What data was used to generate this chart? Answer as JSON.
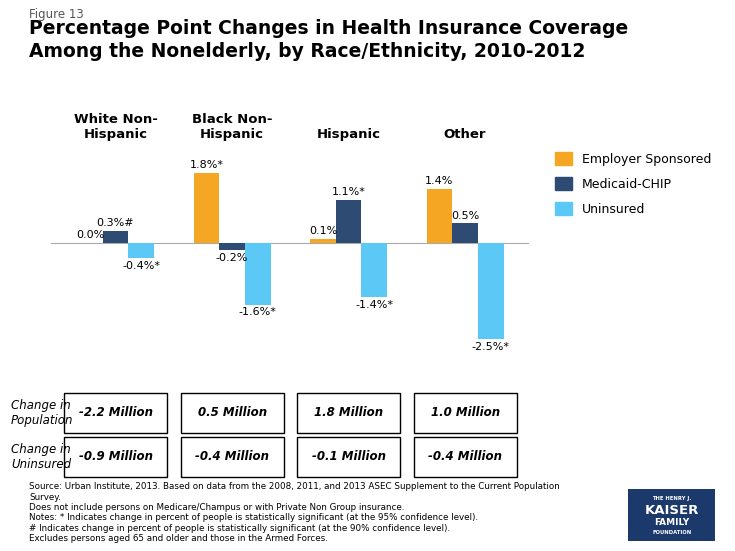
{
  "title_line1": "Percentage Point Changes in Health Insurance Coverage",
  "title_line2": "Among the Nonelderly, by Race/Ethnicity, 2010-2012",
  "figure_label": "Figure 13",
  "categories": [
    "White Non-\nHispanic",
    "Black Non-\nHispanic",
    "Hispanic",
    "Other"
  ],
  "employer_sponsored": [
    0.0,
    1.8,
    0.1,
    1.4
  ],
  "medicaid_chip": [
    0.3,
    -0.2,
    1.1,
    0.5
  ],
  "uninsured": [
    -0.4,
    -1.6,
    -1.4,
    -2.5
  ],
  "employer_color": "#F5A623",
  "medicaid_color": "#2E4B73",
  "uninsured_color": "#5BC8F5",
  "employer_label": "Employer Sponsored",
  "medicaid_label": "Medicaid-CHIP",
  "uninsured_label": "Uninsured",
  "emp_labels": [
    "0.0%",
    "1.8%*",
    "0.1%",
    "1.4%"
  ],
  "med_labels": [
    "0.3%#",
    "-0.2%",
    "1.1%*",
    "0.5%"
  ],
  "uns_labels": [
    "-0.4%*",
    "-1.6%*",
    "-1.4%*",
    "-2.5%*"
  ],
  "change_population": [
    "-2.2 Million",
    "0.5 Million",
    "1.8 Million",
    "1.0 Million"
  ],
  "change_uninsured": [
    "-0.9 Million",
    "-0.4 Million",
    "-0.1 Million",
    "-0.4 Million"
  ],
  "row_label1": "Change in\nPopulation",
  "row_label2": "Change in\nUninsured",
  "source_text": "Source: Urban Institute, 2013. Based on data from the 2008, 2011, and 2013 ASEC Supplement to the Current Population\nSurvey.\nDoes not include persons on Medicare/Champus or with Private Non Group insurance.\nNotes: * Indicates change in percent of people is statistically significant (at the 95% confidence level).\n# Indicates change in percent of people is statistically significant (at the 90% confidence level).\nExcludes persons aged 65 and older and those in the Armed Forces.",
  "ylim": [
    -3.2,
    2.5
  ],
  "bar_width": 0.22
}
